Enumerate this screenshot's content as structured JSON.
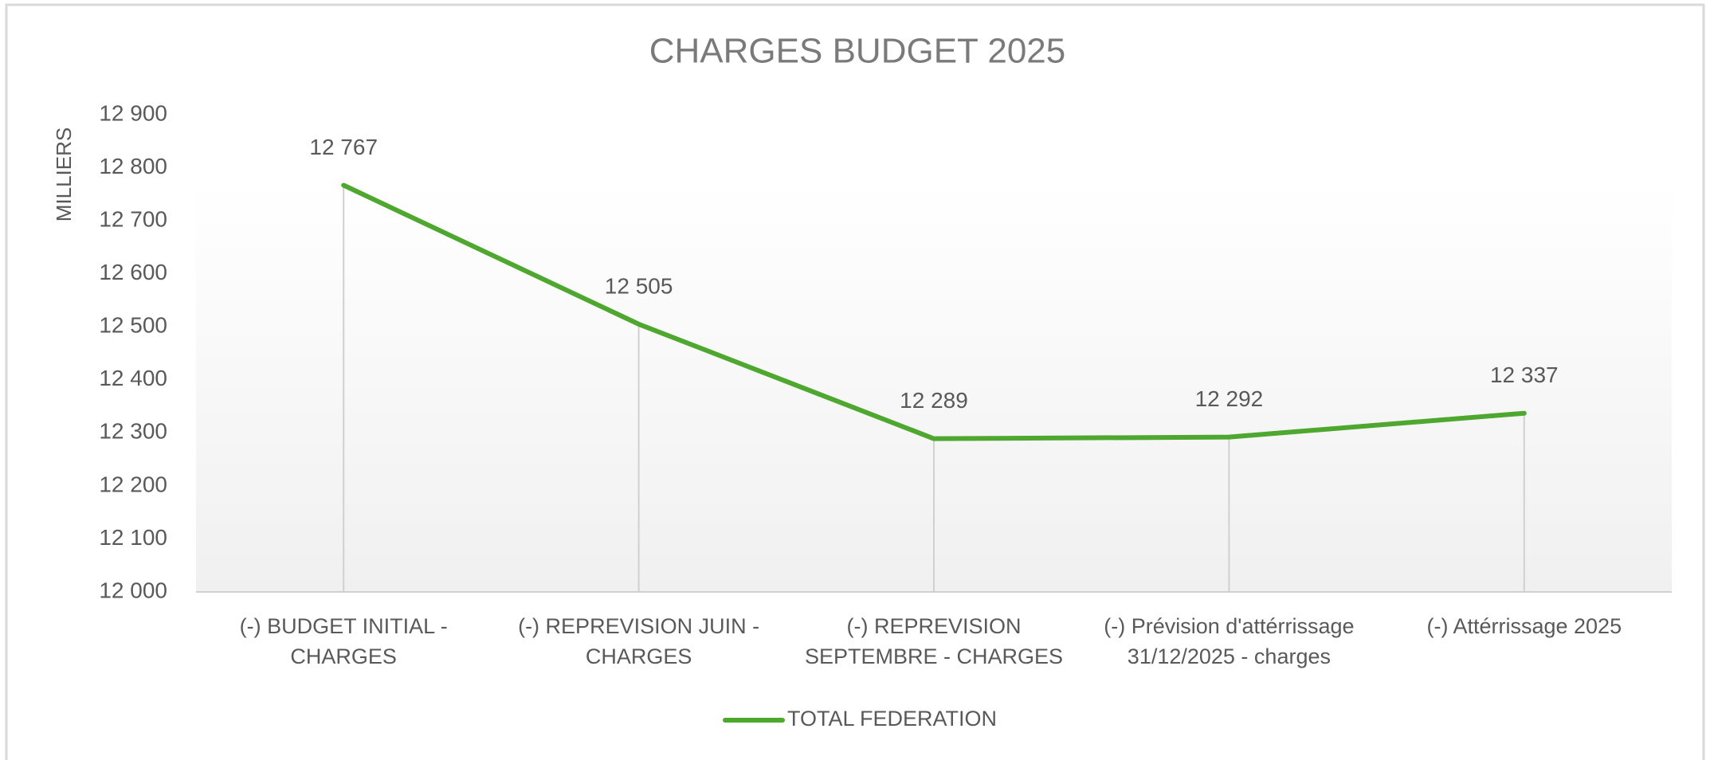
{
  "chart_data": {
    "type": "line",
    "title": "CHARGES BUDGET 2025",
    "ylabel": "MILLIERS",
    "categories": [
      "(-) BUDGET INITIAL - CHARGES",
      "(-) REPREVISION JUIN - CHARGES",
      "(-) REPREVISION SEPTEMBRE - CHARGES",
      "(-) Prévision d'attérrissage 31/12/2025 - charges",
      "(-) Attérrissage 2025"
    ],
    "series": [
      {
        "name": "TOTAL FEDERATION",
        "color": "#4ea72e",
        "values": [
          12767,
          12505,
          12289,
          12292,
          12337
        ],
        "value_labels": [
          "12 767",
          "12 505",
          "12 289",
          "12 292",
          "12 337"
        ]
      }
    ],
    "ylim": [
      12000,
      12900
    ],
    "yticks": [
      {
        "value": 12000,
        "label": "12 000"
      },
      {
        "value": 12100,
        "label": "12 100"
      },
      {
        "value": 12200,
        "label": "12 200"
      },
      {
        "value": 12300,
        "label": "12 300"
      },
      {
        "value": 12400,
        "label": "12 400"
      },
      {
        "value": 12500,
        "label": "12 500"
      },
      {
        "value": 12600,
        "label": "12 600"
      },
      {
        "value": 12700,
        "label": "12 700"
      },
      {
        "value": 12800,
        "label": "12 800"
      },
      {
        "value": 12900,
        "label": "12 900"
      }
    ],
    "drop_lines": true,
    "legend": "bottom"
  }
}
